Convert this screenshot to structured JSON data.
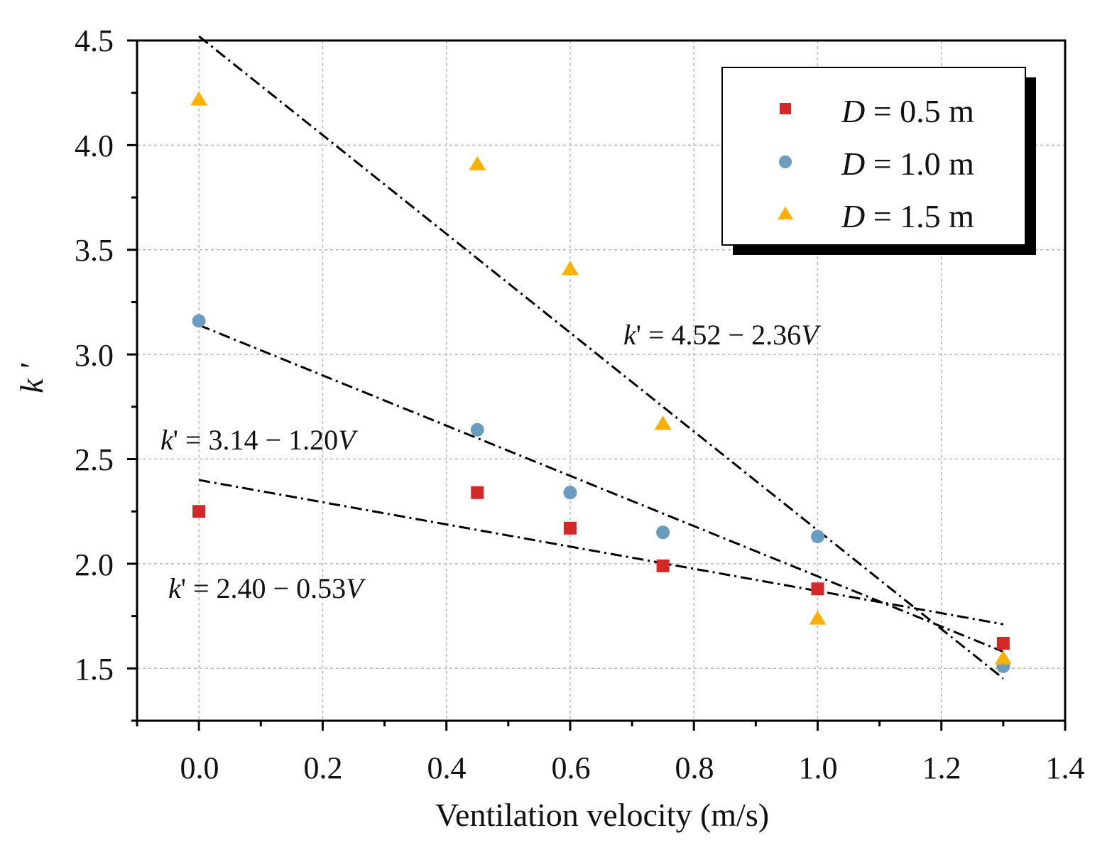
{
  "chart_data": {
    "type": "scatter",
    "title": "",
    "xlabel": "Ventilation velocity (m/s)",
    "ylabel": "k '",
    "xlim": [
      -0.1,
      1.4
    ],
    "ylim": [
      1.25,
      4.5
    ],
    "x_ticks": [
      0.0,
      0.2,
      0.4,
      0.6,
      0.8,
      1.0,
      1.2,
      1.4
    ],
    "x_tick_labels": [
      "0.0",
      "0.2",
      "0.4",
      "0.6",
      "0.8",
      "1.0",
      "1.2",
      "1.4"
    ],
    "y_ticks": [
      1.5,
      2.0,
      2.5,
      3.0,
      3.5,
      4.0,
      4.5
    ],
    "y_tick_labels": [
      "1.5",
      "2.0",
      "2.5",
      "3.0",
      "3.5",
      "4.0",
      "4.5"
    ],
    "grid": true,
    "legend_position": "top-right",
    "series": [
      {
        "name": "D = 0.5 m",
        "legend_var": "D",
        "legend_value": "= 0.5 m",
        "marker": "square",
        "color": "#d62728",
        "x": [
          0.0,
          0.45,
          0.6,
          0.75,
          1.0,
          1.3
        ],
        "y": [
          2.25,
          2.34,
          2.17,
          1.99,
          1.88,
          1.62
        ]
      },
      {
        "name": "D = 1.0 m",
        "legend_var": "D",
        "legend_value": "= 1.0 m",
        "marker": "circle",
        "color": "#6a9cc0",
        "x": [
          0.0,
          0.45,
          0.6,
          0.75,
          1.0,
          1.3
        ],
        "y": [
          3.16,
          2.64,
          2.34,
          2.15,
          2.13,
          1.51
        ]
      },
      {
        "name": "D = 1.5 m",
        "legend_var": "D",
        "legend_value": "= 1.5 m",
        "marker": "triangle",
        "color": "#ffb000",
        "x": [
          0.0,
          0.45,
          0.6,
          0.75,
          1.0,
          1.3
        ],
        "y": [
          4.22,
          3.91,
          3.41,
          2.67,
          1.74,
          1.55
        ]
      }
    ],
    "fits": [
      {
        "series": "D = 0.5 m",
        "intercept": 2.4,
        "slope": -0.53,
        "x_range": [
          0.0,
          1.3
        ],
        "label_var": "k",
        "label_rest": "' = 2.40 − 0.53",
        "label_v": "V"
      },
      {
        "series": "D = 1.0 m",
        "intercept": 3.14,
        "slope": -1.2,
        "x_range": [
          0.0,
          1.3
        ],
        "label_var": "k",
        "label_rest": "' = 3.14 − 1.20",
        "label_v": "V"
      },
      {
        "series": "D = 1.5 m",
        "intercept": 4.52,
        "slope": -2.36,
        "x_range": [
          0.0,
          1.3
        ],
        "label_var": "k",
        "label_rest": "' = 4.52 − 2.36",
        "label_v": "V"
      }
    ]
  }
}
